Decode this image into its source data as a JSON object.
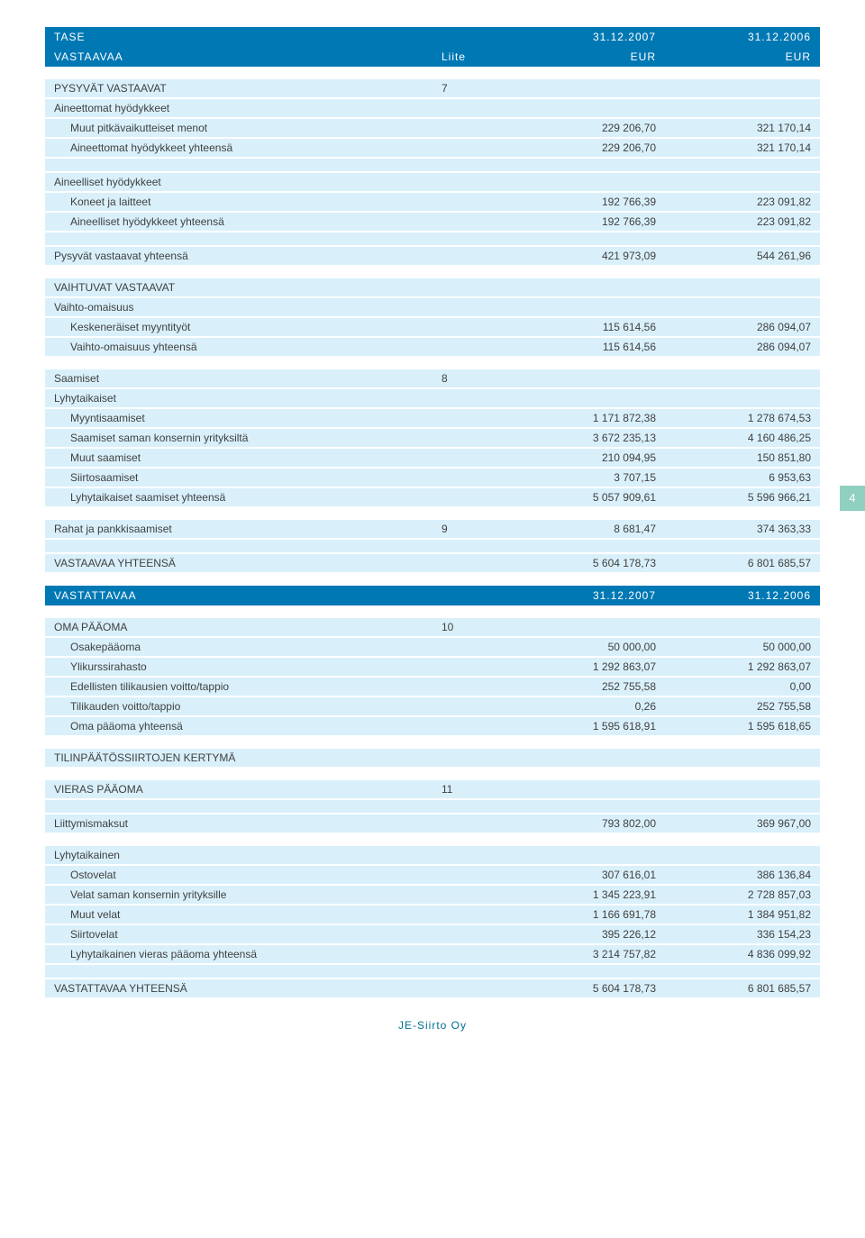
{
  "colors": {
    "header_bg": "#0078b4",
    "header_fg": "#ffffff",
    "row_bg": "#d9f0fb",
    "text": "#404040",
    "tab_bg": "#8fd0c1",
    "footer": "#006f8f"
  },
  "font_size_pt": 9,
  "page_tab": "4",
  "footer": "JE-Siirto Oy",
  "header1": {
    "title": "TASE",
    "liite": "",
    "col1": "31.12.2007",
    "col2": "31.12.2006"
  },
  "header1b": {
    "title": "VASTAAVAA",
    "liite": "Liite",
    "col1": "EUR",
    "col2": "EUR"
  },
  "top_table": [
    {
      "t": "plain-gap"
    },
    {
      "t": "section",
      "label": "PYSYVÄT VASTAAVAT",
      "liite": "7"
    },
    {
      "t": "row",
      "label": "Aineettomat hyödykkeet"
    },
    {
      "t": "row",
      "label": "Muut pitkävaikutteiset menot",
      "indent": true,
      "v1": "229 206,70",
      "v2": "321 170,14"
    },
    {
      "t": "row",
      "label": "Aineettomat hyödykkeet yhteensä",
      "indent": true,
      "v1": "229 206,70",
      "v2": "321 170,14"
    },
    {
      "t": "spacer"
    },
    {
      "t": "row",
      "label": "Aineelliset hyödykkeet"
    },
    {
      "t": "row",
      "label": "Koneet ja laitteet",
      "indent": true,
      "v1": "192 766,39",
      "v2": "223 091,82"
    },
    {
      "t": "row",
      "label": "Aineelliset hyödykkeet yhteensä",
      "indent": true,
      "v1": "192 766,39",
      "v2": "223 091,82"
    },
    {
      "t": "spacer"
    },
    {
      "t": "row",
      "label": "Pysyvät vastaavat yhteensä",
      "v1": "421 973,09",
      "v2": "544 261,96"
    },
    {
      "t": "plain-gap"
    },
    {
      "t": "section",
      "label": "VAIHTUVAT VASTAAVAT"
    },
    {
      "t": "row",
      "label": "Vaihto-omaisuus"
    },
    {
      "t": "row",
      "label": "Keskeneräiset myyntityöt",
      "indent": true,
      "v1": "115 614,56",
      "v2": "286 094,07"
    },
    {
      "t": "row",
      "label": "Vaihto-omaisuus yhteensä",
      "indent": true,
      "v1": "115 614,56",
      "v2": "286 094,07"
    },
    {
      "t": "plain-gap"
    },
    {
      "t": "row",
      "label": "Saamiset",
      "liite": "8"
    },
    {
      "t": "row",
      "label": "Lyhytaikaiset"
    },
    {
      "t": "row",
      "label": "Myyntisaamiset",
      "indent": true,
      "v1": "1 171 872,38",
      "v2": "1 278 674,53"
    },
    {
      "t": "row",
      "label": "Saamiset saman konsernin yrityksiltä",
      "indent": true,
      "v1": "3 672 235,13",
      "v2": "4 160 486,25"
    },
    {
      "t": "row",
      "label": "Muut saamiset",
      "indent": true,
      "v1": "210 094,95",
      "v2": "150 851,80"
    },
    {
      "t": "row",
      "label": "Siirtosaamiset",
      "indent": true,
      "v1": "3 707,15",
      "v2": "6 953,63"
    },
    {
      "t": "row",
      "label": "Lyhytaikaiset saamiset yhteensä",
      "indent": true,
      "v1": "5 057 909,61",
      "v2": "5 596 966,21"
    },
    {
      "t": "plain-gap"
    },
    {
      "t": "row",
      "label": "Rahat ja pankkisaamiset",
      "liite": "9",
      "v1": "8 681,47",
      "v2": "374 363,33"
    },
    {
      "t": "spacer"
    },
    {
      "t": "row",
      "label": "VASTAAVAA YHTEENSÄ",
      "v1": "5 604 178,73",
      "v2": "6 801 685,57"
    },
    {
      "t": "plain-gap"
    }
  ],
  "header2": {
    "title": "VASTATTAVAA",
    "liite": "",
    "col1": "31.12.2007",
    "col2": "31.12.2006"
  },
  "bottom_table": [
    {
      "t": "plain-gap"
    },
    {
      "t": "section",
      "label": "OMA PÄÄOMA",
      "liite": "10"
    },
    {
      "t": "row",
      "label": "Osakepääoma",
      "indent": true,
      "v1": "50 000,00",
      "v2": "50 000,00"
    },
    {
      "t": "row",
      "label": "Ylikurssirahasto",
      "indent": true,
      "v1": "1 292 863,07",
      "v2": "1 292 863,07"
    },
    {
      "t": "row",
      "label": "Edellisten tilikausien voitto/tappio",
      "indent": true,
      "v1": "252 755,58",
      "v2": "0,00"
    },
    {
      "t": "row",
      "label": "Tilikauden voitto/tappio",
      "indent": true,
      "v1": "0,26",
      "v2": "252 755,58"
    },
    {
      "t": "row",
      "label": "Oma pääoma yhteensä",
      "indent": true,
      "v1": "1 595 618,91",
      "v2": "1 595 618,65"
    },
    {
      "t": "plain-gap"
    },
    {
      "t": "section",
      "label": "TILINPÄÄTÖSSIIRTOJEN KERTYMÄ"
    },
    {
      "t": "plain-gap"
    },
    {
      "t": "section",
      "label": "VIERAS PÄÄOMA",
      "liite": "11"
    },
    {
      "t": "spacer"
    },
    {
      "t": "row",
      "label": "Liittymismaksut",
      "v1": "793 802,00",
      "v2": "369 967,00"
    },
    {
      "t": "plain-gap"
    },
    {
      "t": "row",
      "label": "Lyhytaikainen"
    },
    {
      "t": "row",
      "label": "Ostovelat",
      "indent": true,
      "v1": "307 616,01",
      "v2": "386 136,84"
    },
    {
      "t": "row",
      "label": "Velat saman konsernin yrityksille",
      "indent": true,
      "v1": "1 345 223,91",
      "v2": "2 728 857,03"
    },
    {
      "t": "row",
      "label": "Muut velat",
      "indent": true,
      "v1": "1 166 691,78",
      "v2": "1 384 951,82"
    },
    {
      "t": "row",
      "label": "Siirtovelat",
      "indent": true,
      "v1": "395 226,12",
      "v2": "336 154,23"
    },
    {
      "t": "row",
      "label": "Lyhytaikainen vieras pääoma yhteensä",
      "indent": true,
      "v1": "3 214 757,82",
      "v2": "4 836 099,92"
    },
    {
      "t": "spacer"
    },
    {
      "t": "row",
      "label": "VASTATTAVAA YHTEENSÄ",
      "v1": "5 604 178,73",
      "v2": "6 801 685,57"
    }
  ]
}
